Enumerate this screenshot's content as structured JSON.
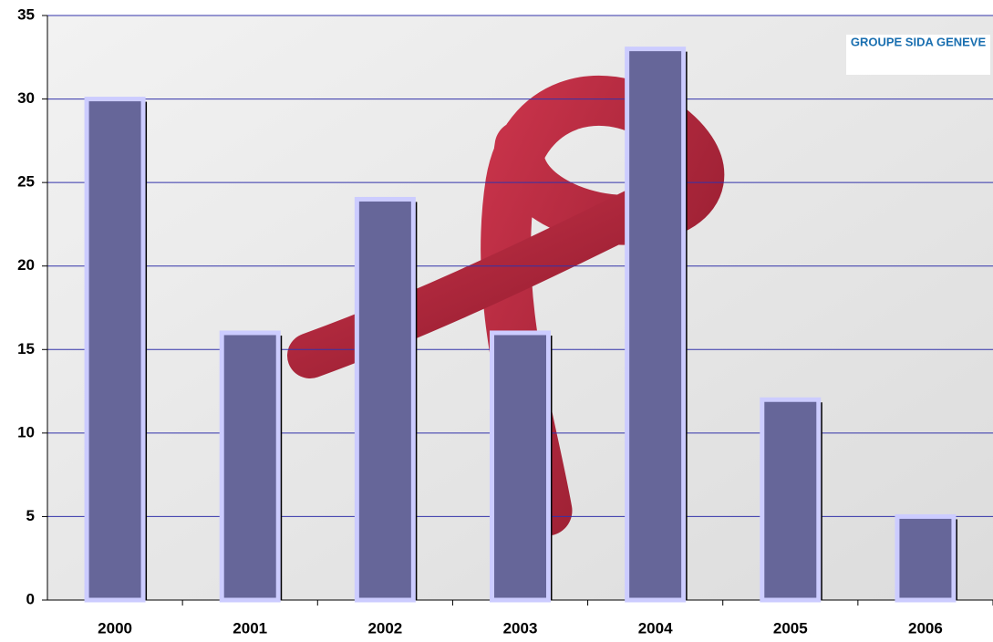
{
  "chart_data": {
    "type": "bar",
    "categories": [
      "2000",
      "2001",
      "2002",
      "2003",
      "2004",
      "2005",
      "2006"
    ],
    "values": [
      30,
      16,
      24,
      16,
      33,
      12,
      5
    ],
    "color": "#666699",
    "ylim": [
      0,
      35
    ],
    "yticks": [
      0,
      5,
      10,
      15,
      20,
      25,
      30,
      35
    ],
    "grid": true,
    "logo": "GROUPE SIDA GENEVE"
  }
}
